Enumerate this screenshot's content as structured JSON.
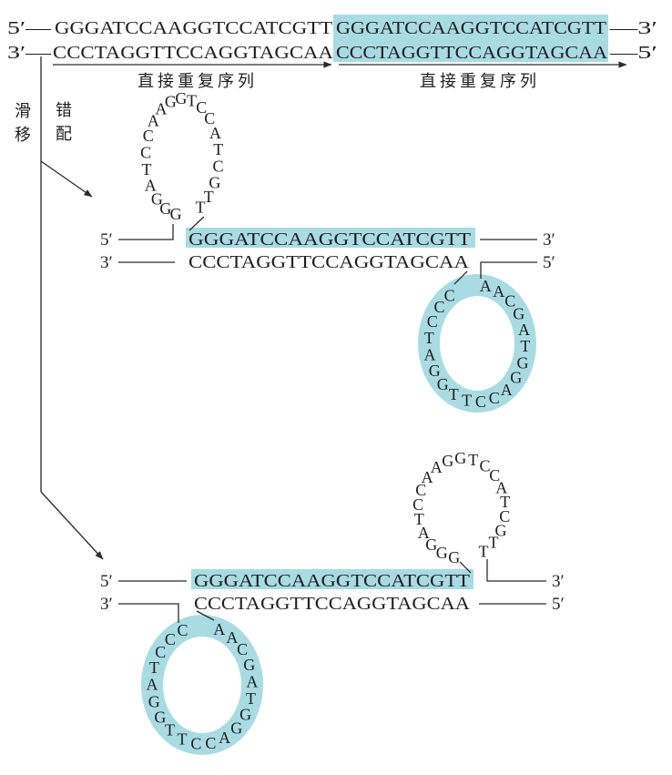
{
  "colors": {
    "highlight": "#a9dbe3",
    "ink": "#1e1e1e"
  },
  "top": {
    "strand1": {
      "left_end": "5′—",
      "repeat_a": "GGGATCCAAGGTCCATCGTT",
      "repeat_b": "GGGATCCAAGGTCCATCGTT",
      "right_end": "—3′"
    },
    "strand2": {
      "left_end": "3′—",
      "repeat_a": "CCCTAGGTTCCAGGTAGCAA",
      "repeat_b": "CCCTAGGTTCCAGGTAGCAA",
      "right_end": "—5′"
    },
    "repeat_labels": [
      "直接重复序列",
      "直接重复序列"
    ]
  },
  "side_labels": {
    "slippage": [
      "滑",
      "移"
    ],
    "mispairing": [
      "错",
      "配"
    ]
  },
  "slip_1": {
    "top_strand": {
      "end_left": "5′",
      "loop": [
        "G",
        "G",
        "G",
        "A",
        "T",
        "C",
        "C",
        "A",
        "A",
        "G",
        "G",
        "T",
        "C",
        "C",
        "A",
        "T",
        "C",
        "G",
        "T",
        "T"
      ],
      "paired": "GGGATCCAAGGTCCATCGTT",
      "end_right": "3′"
    },
    "bottom_strand": {
      "end_left": "3′",
      "paired": "CCCTAGGTTCCAGGTAGCAA",
      "loop": [
        "C",
        "C",
        "C",
        "T",
        "A",
        "G",
        "G",
        "T",
        "T",
        "C",
        "C",
        "A",
        "G",
        "G",
        "T",
        "A",
        "G",
        "C",
        "A",
        "A"
      ],
      "end_right": "5′"
    }
  },
  "slip_2": {
    "top_strand": {
      "end_left": "5′",
      "paired": "GGGATCCAAGGTCCATCGTT",
      "loop": [
        "G",
        "G",
        "G",
        "A",
        "T",
        "C",
        "C",
        "A",
        "A",
        "G",
        "G",
        "T",
        "C",
        "C",
        "A",
        "T",
        "C",
        "G",
        "T",
        "T"
      ],
      "end_right": "3′"
    },
    "bottom_strand": {
      "end_left": "3′",
      "loop": [
        "C",
        "C",
        "C",
        "T",
        "A",
        "G",
        "G",
        "T",
        "T",
        "C",
        "C",
        "A",
        "G",
        "G",
        "T",
        "A",
        "G",
        "C",
        "A",
        "A"
      ],
      "paired": "CCCTAGGTTCCAGGTAGCAA",
      "end_right": "5′"
    }
  }
}
